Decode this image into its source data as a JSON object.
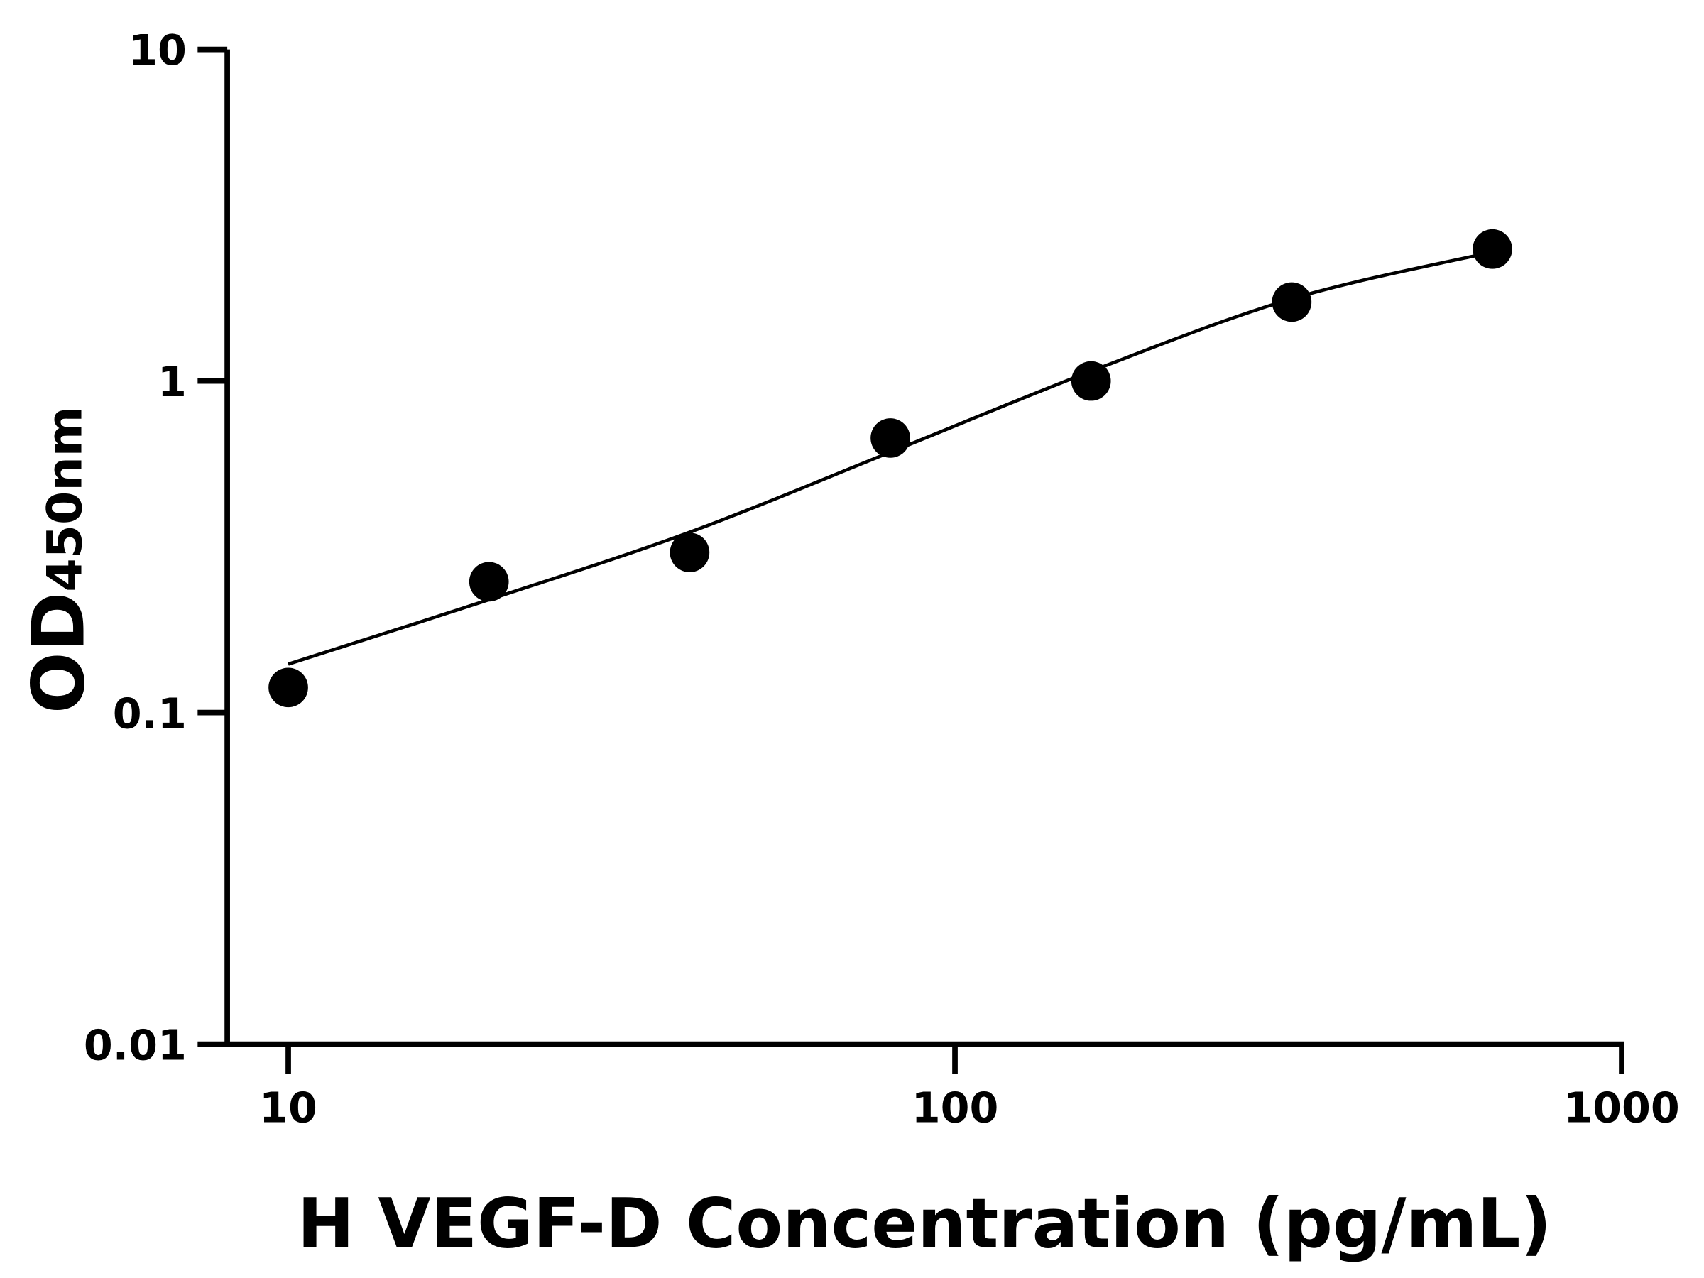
{
  "chart_data": {
    "type": "scatter",
    "title": "",
    "xlabel": "H VEGF-D Concentration (pg/mL)",
    "ylabel_main": "OD",
    "ylabel_sub": "450nm",
    "x_scale": "log",
    "y_scale": "log",
    "xlim": [
      8.1,
      1000
    ],
    "ylim": [
      0.01,
      10
    ],
    "x_ticks": [
      {
        "value": 10,
        "label": "10"
      },
      {
        "value": 100,
        "label": "100"
      },
      {
        "value": 1000,
        "label": "1000"
      }
    ],
    "y_ticks": [
      {
        "value": 0.01,
        "label": "0.01"
      },
      {
        "value": 0.1,
        "label": "0.1"
      },
      {
        "value": 1,
        "label": "1"
      },
      {
        "value": 10,
        "label": "10"
      }
    ],
    "grid": false,
    "points": [
      {
        "x": 10,
        "y": 0.119
      },
      {
        "x": 20,
        "y": 0.248
      },
      {
        "x": 40,
        "y": 0.304
      },
      {
        "x": 80,
        "y": 0.673
      },
      {
        "x": 160,
        "y": 1.0
      },
      {
        "x": 320,
        "y": 1.73
      },
      {
        "x": 640,
        "y": 2.5
      }
    ],
    "fit_curve": [
      {
        "x": 10,
        "y": 0.14
      },
      {
        "x": 20,
        "y": 0.219
      },
      {
        "x": 40,
        "y": 0.35
      },
      {
        "x": 80,
        "y": 0.61
      },
      {
        "x": 160,
        "y": 1.07
      },
      {
        "x": 320,
        "y": 1.77
      },
      {
        "x": 640,
        "y": 2.45
      }
    ],
    "colors": {
      "points": "#000000",
      "curve": "#000000",
      "axes": "#000000"
    }
  }
}
